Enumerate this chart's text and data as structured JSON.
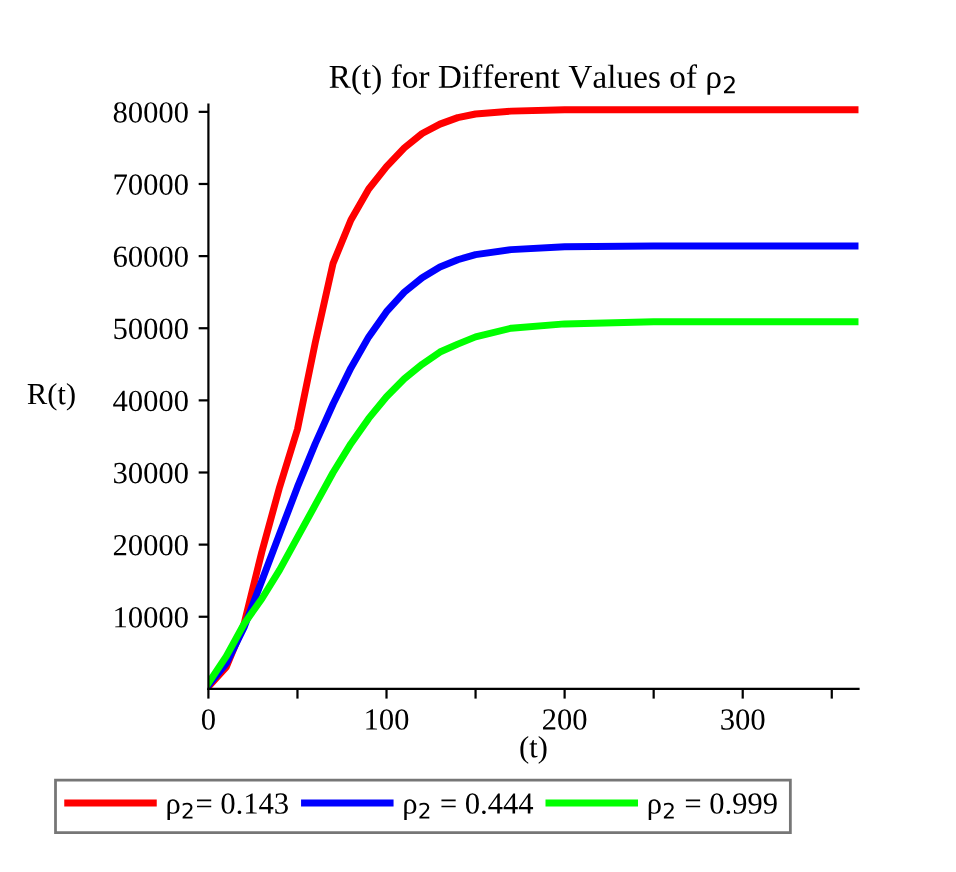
{
  "chart_data": {
    "type": "line",
    "title": "R(t) for Different Values of ρ$_{2}$",
    "xlabel": "(t)",
    "ylabel": "R(t)",
    "xlim": [
      0,
      365
    ],
    "ylim": [
      0,
      81000
    ],
    "xticks": [
      0,
      {
        "value": 50,
        "label": null
      },
      100,
      {
        "value": 150,
        "label": null
      },
      200,
      {
        "value": 250,
        "label": null
      },
      300,
      {
        "value": 350,
        "label": null
      }
    ],
    "yticks": [
      10000,
      20000,
      30000,
      40000,
      50000,
      60000,
      70000,
      80000
    ],
    "grid": false,
    "legend": "bottom",
    "line_style": "solid",
    "marker": "none",
    "series": [
      {
        "name": "ρ$_{2}$= 0.143",
        "color": "#ff0000",
        "x": [
          0,
          10,
          20,
          30,
          40,
          50,
          60,
          70,
          80,
          90,
          100,
          110,
          120,
          130,
          140,
          150,
          170,
          200,
          250,
          365
        ],
        "values": [
          300,
          3000,
          9000,
          19000,
          28000,
          36000,
          48000,
          59000,
          65000,
          69300,
          72400,
          75000,
          77000,
          78300,
          79200,
          79700,
          80100,
          80300,
          80300,
          80300
        ]
      },
      {
        "name": "ρ$_{2}$ = 0.444",
        "color": "#0000ff",
        "x": [
          0,
          10,
          20,
          30,
          40,
          50,
          60,
          70,
          80,
          90,
          100,
          110,
          120,
          130,
          140,
          150,
          170,
          200,
          250,
          365
        ],
        "values": [
          500,
          3500,
          8500,
          15000,
          21500,
          28000,
          34000,
          39500,
          44500,
          48800,
          52300,
          55000,
          57000,
          58500,
          59500,
          60200,
          60900,
          61300,
          61400,
          61400
        ]
      },
      {
        "name": "ρ$_{2}$ = 0.999",
        "color": "#00ff00",
        "x": [
          0,
          10,
          20,
          30,
          40,
          50,
          60,
          70,
          80,
          90,
          100,
          110,
          120,
          130,
          140,
          150,
          170,
          200,
          250,
          365
        ],
        "values": [
          800,
          4500,
          9000,
          12500,
          16500,
          21000,
          25500,
          30000,
          34000,
          37500,
          40500,
          43000,
          45000,
          46700,
          47800,
          48800,
          50000,
          50600,
          50900,
          50900
        ]
      }
    ]
  }
}
